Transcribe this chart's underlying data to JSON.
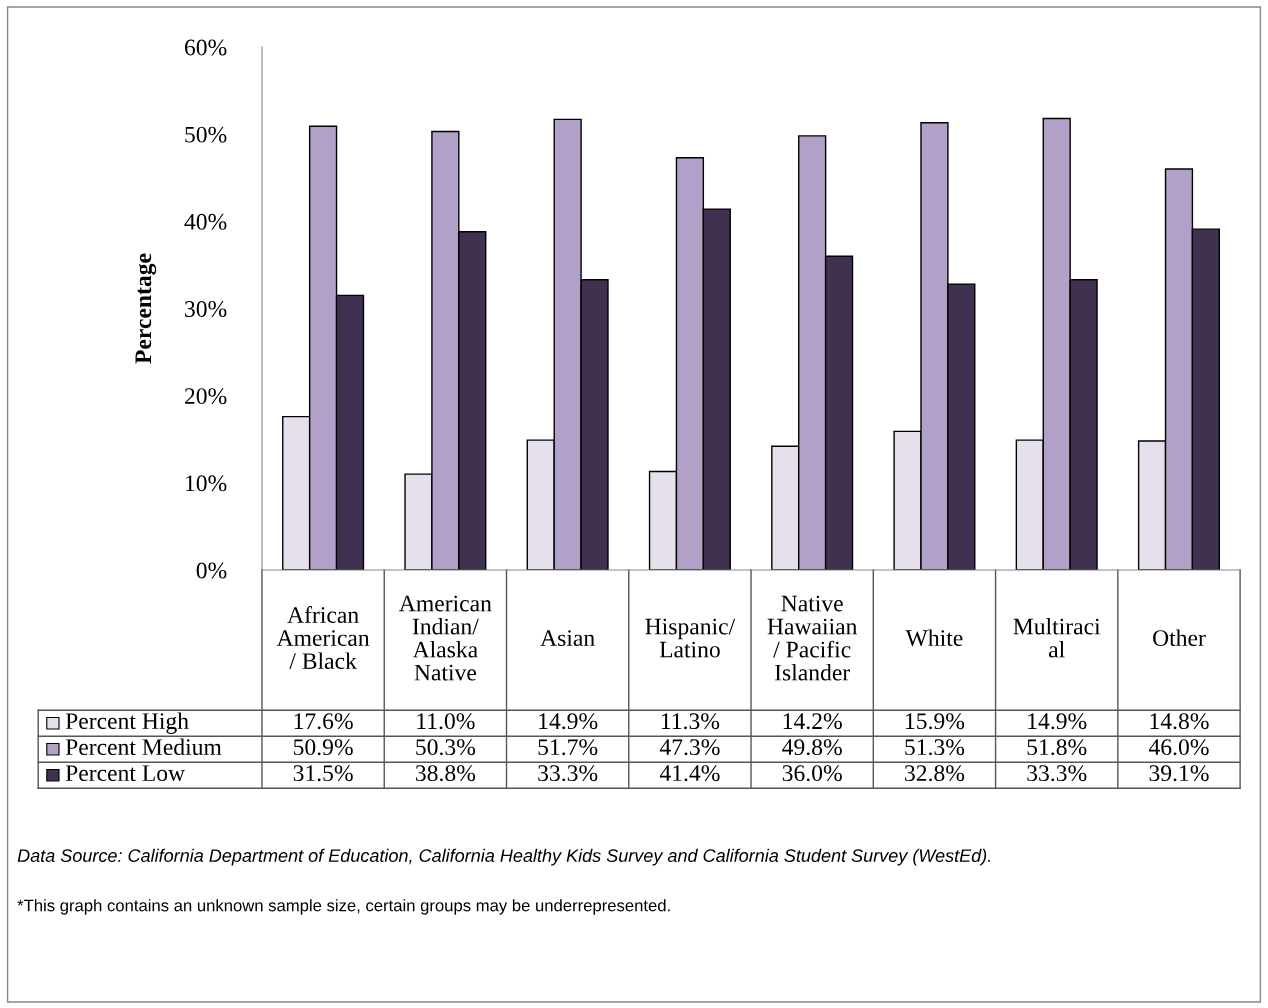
{
  "chart_data": {
    "type": "bar",
    "ylabel": "Percentage",
    "categories": [
      "African\nAmerican\n/ Black",
      "American\nIndian/\nAlaska\nNative",
      "Asian",
      "Hispanic/\nLatino",
      "Native\nHawaiian\n/ Pacific\nIslander",
      "White",
      "Multiraci\nal",
      "Other"
    ],
    "series": [
      {
        "name": "Percent High",
        "color": "#e6e0ec",
        "values": [
          17.6,
          11.0,
          14.9,
          11.3,
          14.2,
          15.9,
          14.9,
          14.8
        ],
        "value_labels": [
          "17.6%",
          "11.0%",
          "14.9%",
          "11.3%",
          "14.2%",
          "15.9%",
          "14.9%",
          "14.8%"
        ]
      },
      {
        "name": "Percent Medium",
        "color": "#b1a0c7",
        "values": [
          50.9,
          50.3,
          51.7,
          47.3,
          49.8,
          51.3,
          51.8,
          46.0
        ],
        "value_labels": [
          "50.9%",
          "50.3%",
          "51.7%",
          "47.3%",
          "49.8%",
          "51.3%",
          "51.8%",
          "46.0%"
        ]
      },
      {
        "name": "Percent Low",
        "color": "#403151",
        "values": [
          31.5,
          38.8,
          33.3,
          41.4,
          36.0,
          32.8,
          33.3,
          39.1
        ],
        "value_labels": [
          "31.5%",
          "38.8%",
          "33.3%",
          "41.4%",
          "36.0%",
          "32.8%",
          "33.3%",
          "39.1%"
        ]
      }
    ],
    "ylim": [
      0,
      60
    ],
    "yticks": [
      {
        "value": 0,
        "label": "0%"
      },
      {
        "value": 10,
        "label": "10%"
      },
      {
        "value": 20,
        "label": "20%"
      },
      {
        "value": 30,
        "label": "30%"
      },
      {
        "value": 40,
        "label": "40%"
      },
      {
        "value": 50,
        "label": "50%"
      },
      {
        "value": 60,
        "label": "60%"
      }
    ],
    "grid": false,
    "legend": "bottom left",
    "annotations": [
      "Data Source: California Department of Education, California Healthy Kids Survey and California Student Survey (WestEd).",
      "*This graph contains an unknown sample size, certain groups may be underrepresented."
    ]
  }
}
